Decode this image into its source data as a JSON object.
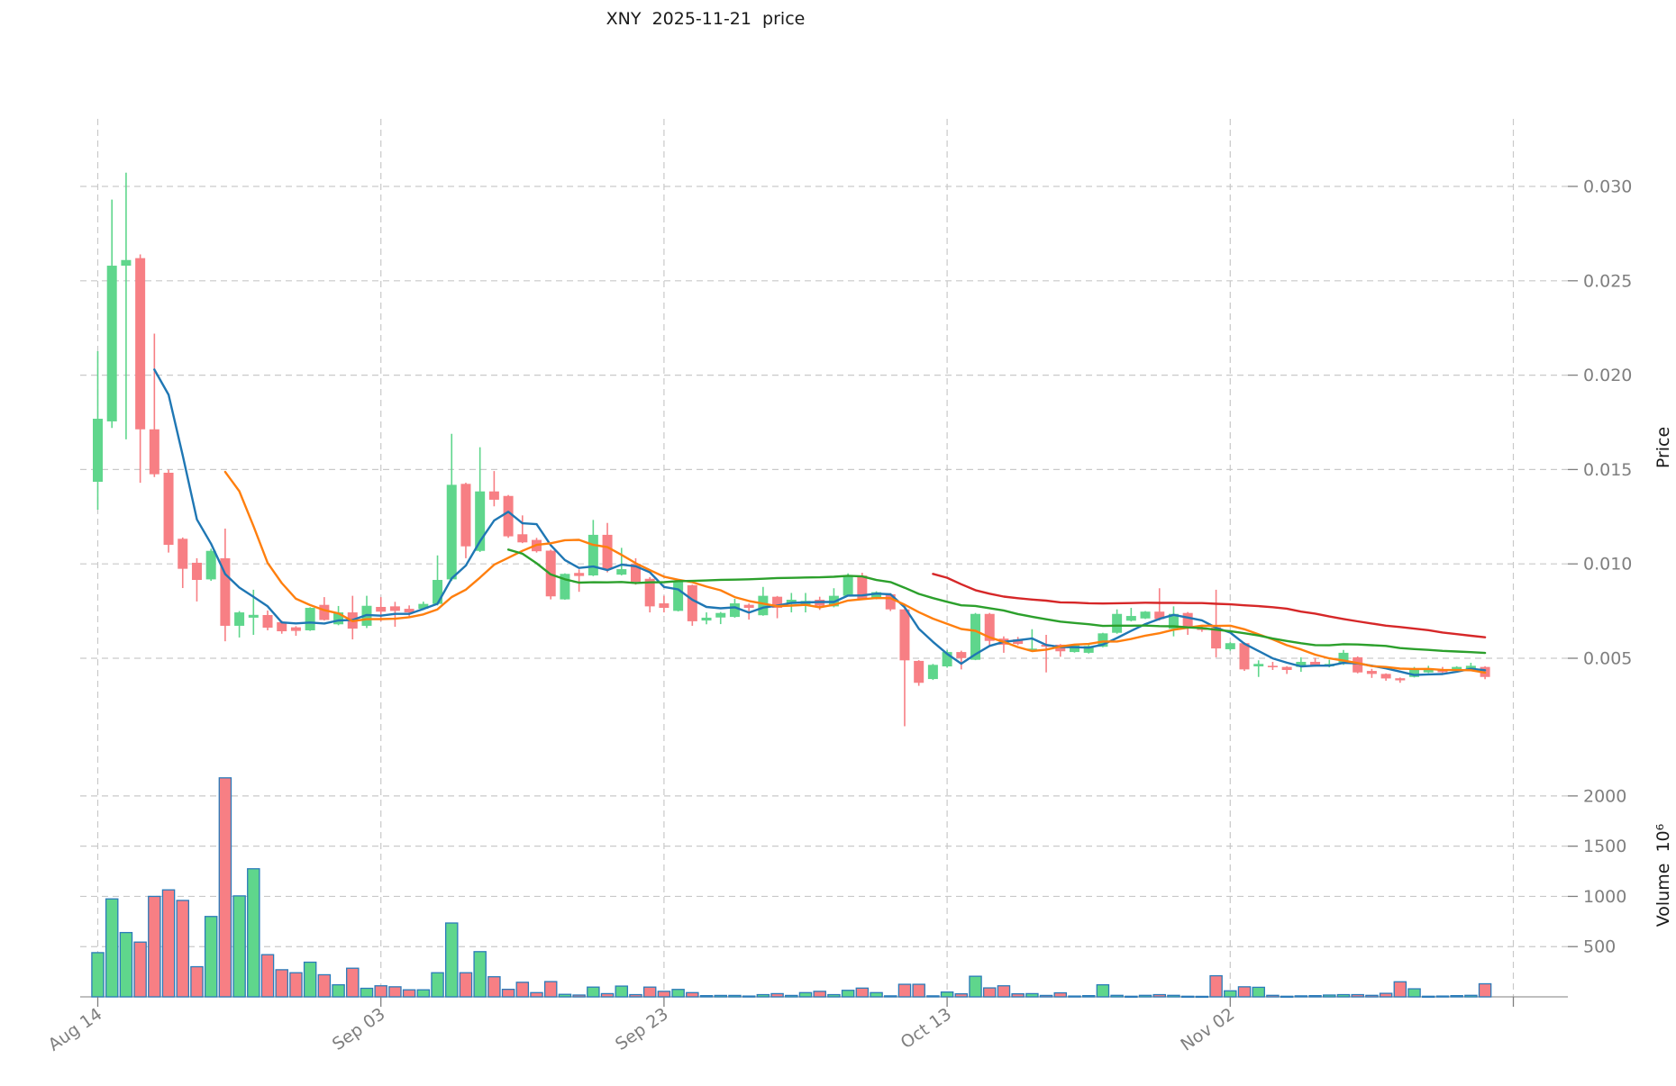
{
  "title": "XNY  2025-11-21  price",
  "chart_data": {
    "type": "candlestick+volume",
    "title": "XNY  2025-11-21  price",
    "x_axis": {
      "tick_labels": [
        "Aug 14",
        "Sep 03",
        "Sep 23",
        "Oct 13",
        "Nov 02"
      ],
      "tick_indices": [
        0,
        20,
        40,
        60,
        80
      ],
      "gridline_indices": [
        0,
        20,
        40,
        60,
        80,
        100
      ]
    },
    "price_axis": {
      "label": "Price",
      "ticks": [
        0.005,
        0.01,
        0.015,
        0.02,
        0.025,
        0.03
      ],
      "decimals": 3
    },
    "volume_axis": {
      "label": "Volume  10⁶",
      "ticks": [
        500,
        1000,
        1500,
        2000
      ]
    },
    "moving_averages": [
      {
        "name": "MA5",
        "period": 5,
        "color": "#1f77b4"
      },
      {
        "name": "MA10",
        "period": 10,
        "color": "#ff7f0e"
      },
      {
        "name": "MA30",
        "period": 30,
        "color": "#2ca02c"
      },
      {
        "name": "MA60",
        "period": 60,
        "color": "#d62728"
      }
    ],
    "candles": {
      "open": [
        0.01435,
        0.01755,
        0.0258,
        0.0262,
        0.01713,
        0.01483,
        0.01133,
        0.01006,
        0.00918,
        0.0103,
        0.00672,
        0.00715,
        0.00729,
        0.00691,
        0.00664,
        0.00648,
        0.00783,
        0.0068,
        0.00743,
        0.00672,
        0.00772,
        0.00775,
        0.00762,
        0.00762,
        0.00788,
        0.00918,
        0.01424,
        0.01069,
        0.01384,
        0.0136,
        0.01157,
        0.01127,
        0.0107,
        0.00812,
        0.00952,
        0.00939,
        0.01154,
        0.00943,
        0.01,
        0.00921,
        0.00791,
        0.00751,
        0.00887,
        0.007,
        0.00716,
        0.00719,
        0.00783,
        0.00728,
        0.00826,
        0.00788,
        0.00783,
        0.0081,
        0.00775,
        0.00831,
        0.00938,
        0.00818,
        0.00839,
        0.00759,
        0.00486,
        0.0039,
        0.00457,
        0.00533,
        0.00492,
        0.00735,
        0.00604,
        0.006,
        0.00545,
        0.00572,
        0.00572,
        0.00533,
        0.00529,
        0.00561,
        0.00635,
        0.00699,
        0.00711,
        0.00747,
        0.00656,
        0.0074,
        0.00664,
        0.00664,
        0.00548,
        0.0058,
        0.00457,
        0.0046,
        0.00454,
        0.00454,
        0.00481,
        0.00457,
        0.0047,
        0.00505,
        0.00433,
        0.00417,
        0.00394,
        0.00401,
        0.00425,
        0.00442,
        0.00433,
        0.00441,
        0.00454
      ],
      "high": [
        0.02127,
        0.0293,
        0.03073,
        0.0264,
        0.0222,
        0.015,
        0.0114,
        0.0103,
        0.0108,
        0.01187,
        0.0075,
        0.00863,
        0.00753,
        0.007,
        0.0067,
        0.0077,
        0.00824,
        0.00777,
        0.00831,
        0.00831,
        0.00824,
        0.00799,
        0.0078,
        0.008,
        0.01045,
        0.01689,
        0.0143,
        0.01618,
        0.01492,
        0.01365,
        0.01257,
        0.01138,
        0.01075,
        0.0095,
        0.00971,
        0.01233,
        0.01217,
        0.01085,
        0.0103,
        0.0093,
        0.00831,
        0.0091,
        0.0089,
        0.00743,
        0.00745,
        0.00815,
        0.0079,
        0.00878,
        0.0083,
        0.00846,
        0.00846,
        0.00826,
        0.00871,
        0.0095,
        0.00953,
        0.00855,
        0.00845,
        0.00765,
        0.0049,
        0.0047,
        0.00544,
        0.0054,
        0.0074,
        0.0074,
        0.00616,
        0.00613,
        0.00654,
        0.00624,
        0.00575,
        0.0057,
        0.0057,
        0.00635,
        0.00759,
        0.00767,
        0.0075,
        0.00871,
        0.00775,
        0.00745,
        0.0067,
        0.00863,
        0.00585,
        0.00585,
        0.00489,
        0.00481,
        0.00458,
        0.00505,
        0.00502,
        0.00492,
        0.00544,
        0.0051,
        0.00444,
        0.0042,
        0.00398,
        0.00454,
        0.0046,
        0.00454,
        0.00458,
        0.00476,
        0.00458
      ],
      "low": [
        0.01287,
        0.0172,
        0.0166,
        0.0143,
        0.0146,
        0.0106,
        0.00872,
        0.00801,
        0.0091,
        0.0059,
        0.0061,
        0.00624,
        0.00648,
        0.0063,
        0.00619,
        0.00645,
        0.007,
        0.00675,
        0.006,
        0.0066,
        0.00696,
        0.00667,
        0.0072,
        0.00755,
        0.0078,
        0.0091,
        0.0103,
        0.01063,
        0.01305,
        0.01138,
        0.0111,
        0.0106,
        0.00812,
        0.0081,
        0.00852,
        0.00935,
        0.00955,
        0.00939,
        0.0089,
        0.00743,
        0.00743,
        0.00748,
        0.00672,
        0.0068,
        0.00681,
        0.00715,
        0.00705,
        0.00725,
        0.00712,
        0.00743,
        0.00743,
        0.00756,
        0.0077,
        0.00828,
        0.0081,
        0.00812,
        0.0075,
        0.0014,
        0.00354,
        0.00385,
        0.0045,
        0.00441,
        0.0049,
        0.00568,
        0.00529,
        0.0057,
        0.00537,
        0.00425,
        0.00508,
        0.0053,
        0.00525,
        0.00558,
        0.0063,
        0.00695,
        0.00708,
        0.007,
        0.00616,
        0.00624,
        0.0064,
        0.00505,
        0.0054,
        0.00433,
        0.00401,
        0.00438,
        0.00417,
        0.00428,
        0.00455,
        0.00452,
        0.00465,
        0.0042,
        0.00396,
        0.00381,
        0.0037,
        0.00398,
        0.00422,
        0.00422,
        0.0043,
        0.00438,
        0.00389
      ],
      "close": [
        0.01769,
        0.0258,
        0.0261,
        0.01713,
        0.01475,
        0.01101,
        0.00974,
        0.00915,
        0.01069,
        0.00672,
        0.00743,
        0.0073,
        0.00662,
        0.00643,
        0.00645,
        0.00767,
        0.00703,
        0.00743,
        0.00657,
        0.00778,
        0.00747,
        0.00751,
        0.00743,
        0.00788,
        0.00915,
        0.01419,
        0.01093,
        0.01384,
        0.0134,
        0.01146,
        0.01114,
        0.01067,
        0.00828,
        0.00947,
        0.00936,
        0.01154,
        0.00971,
        0.00972,
        0.00905,
        0.00775,
        0.00767,
        0.00907,
        0.00696,
        0.00715,
        0.0074,
        0.00791,
        0.00767,
        0.00831,
        0.00767,
        0.0081,
        0.00804,
        0.00778,
        0.00831,
        0.00938,
        0.00815,
        0.0085,
        0.00759,
        0.00489,
        0.0037,
        0.00465,
        0.00533,
        0.00501,
        0.00735,
        0.00592,
        0.00572,
        0.00576,
        0.00551,
        0.00561,
        0.00537,
        0.00568,
        0.00565,
        0.00632,
        0.00735,
        0.00724,
        0.00747,
        0.00708,
        0.00735,
        0.00664,
        0.0065,
        0.00552,
        0.0058,
        0.00441,
        0.0047,
        0.00455,
        0.00438,
        0.00481,
        0.0046,
        0.0047,
        0.00529,
        0.00425,
        0.00417,
        0.00393,
        0.00383,
        0.00438,
        0.00442,
        0.00426,
        0.00454,
        0.0046,
        0.00401
      ],
      "volume_millions": [
        440,
        975,
        640,
        545,
        1000,
        1065,
        960,
        300,
        800,
        2180,
        1005,
        1275,
        420,
        270,
        240,
        345,
        220,
        120,
        285,
        85,
        110,
        100,
        70,
        70,
        240,
        735,
        240,
        450,
        200,
        75,
        145,
        42,
        152,
        25,
        18,
        97,
        32,
        107,
        22,
        97,
        55,
        74,
        42,
        12,
        14,
        14,
        8,
        22,
        32,
        14,
        42,
        55,
        22,
        65,
        87,
        42,
        10,
        125,
        125,
        10,
        48,
        30,
        205,
        89,
        110,
        30,
        32,
        14,
        40,
        8,
        12,
        120,
        15,
        6,
        15,
        22,
        15,
        6,
        5,
        210,
        60,
        100,
        95,
        15,
        6,
        10,
        12,
        18,
        22,
        22,
        15,
        35,
        150,
        80,
        6,
        8,
        12,
        15,
        130
      ]
    },
    "colors": {
      "up": "#5fd68c",
      "down": "#f77f84",
      "volume_bar_edge": "#2b7bba",
      "grid": "#c9c9c9",
      "tick_text": "#7f7f7f",
      "title_text": "#1a1a1a",
      "axis_spine": "#999999"
    },
    "layout_hints": {
      "grid": "dashed",
      "legend": "none",
      "price_ylim": [
        0.0004,
        0.0336
      ],
      "volume_ylim": [
        0,
        2200
      ],
      "x_tick_label_rotation_deg": -35
    }
  }
}
